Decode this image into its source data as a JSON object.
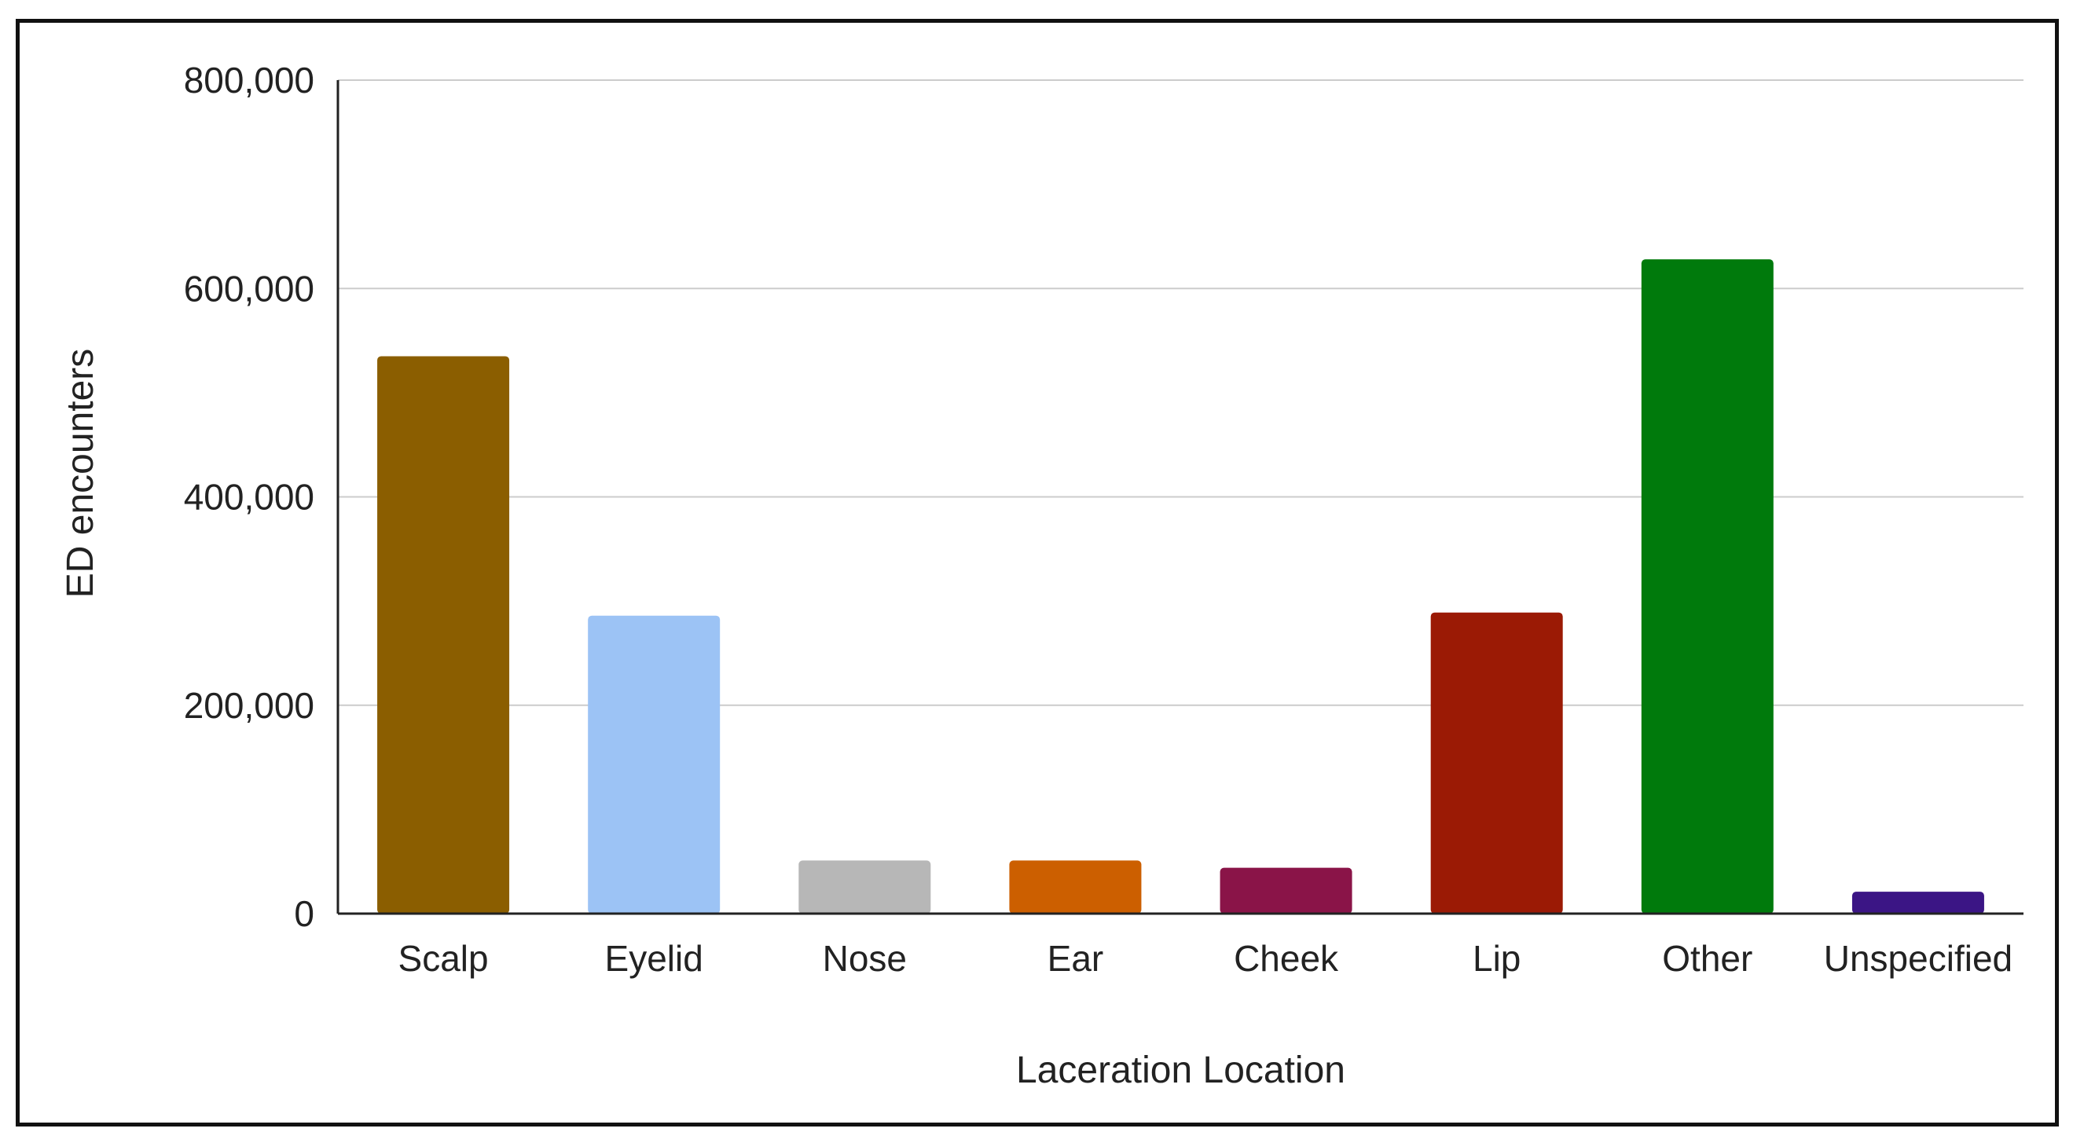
{
  "chart_data": {
    "type": "bar",
    "title": "",
    "xlabel": "Laceration Location",
    "ylabel": "ED encounters",
    "categories": [
      "Scalp",
      "Eyelid",
      "Nose",
      "Ear",
      "Cheek",
      "Lip",
      "Other",
      "Unspecified"
    ],
    "values": [
      535000,
      286000,
      51000,
      51000,
      44000,
      289000,
      628000,
      21000
    ],
    "colors": [
      "#8B5E00",
      "#9CC3F5",
      "#B7B7B7",
      "#CC5F00",
      "#8A1448",
      "#9B1A05",
      "#007A0C",
      "#3B1585"
    ],
    "ylim": [
      0,
      800000
    ],
    "yticks": [
      {
        "value": 0,
        "label": "0"
      },
      {
        "value": 200000,
        "label": "200,000"
      },
      {
        "value": 400000,
        "label": "400,000"
      },
      {
        "value": 600000,
        "label": "600,000"
      },
      {
        "value": 800000,
        "label": "800,000"
      }
    ],
    "grid": true,
    "legend": "none"
  }
}
